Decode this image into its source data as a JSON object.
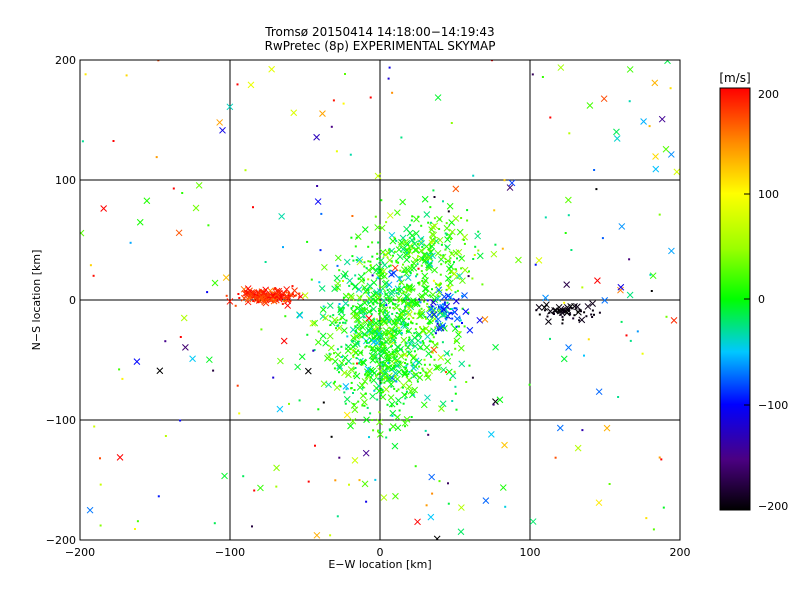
{
  "chart_data": {
    "type": "scatter",
    "title": "Tromsø 20150414 14:18:00−14:19:43",
    "subtitle": "RwPretec (8p) EXPERIMENTAL SKYMAP",
    "xlabel": "E−W location [km]",
    "ylabel": "N−S location [km]",
    "xlim": [
      -200,
      200
    ],
    "ylim": [
      -200,
      200
    ],
    "xticks": [
      "−200",
      "−100",
      "0",
      "100",
      "200"
    ],
    "yticks": [
      "−200",
      "−100",
      "0",
      "100",
      "200"
    ],
    "grid": true,
    "marker_types": [
      "dot",
      "cross"
    ],
    "colorbar": {
      "label": "[m/s]",
      "range": [
        -200,
        200
      ],
      "ticks": [
        "200",
        "100",
        "0",
        "−100",
        "−200"
      ],
      "colormap": "rainbow (black → purple → blue → cyan → green → yellow → orange → red)"
    },
    "clusters": [
      {
        "region": "central",
        "center": [
          5,
          -30
        ],
        "spread": [
          35,
          55
        ],
        "count": 900,
        "velocity_mean": 5,
        "velocity_sd": 25
      },
      {
        "region": "north-center",
        "center": [
          30,
          40
        ],
        "spread": [
          30,
          30
        ],
        "count": 220,
        "velocity_mean": 10,
        "velocity_sd": 25
      },
      {
        "region": "west-red",
        "center": [
          -75,
          3
        ],
        "spread": [
          15,
          5
        ],
        "count": 170,
        "velocity_mean": 185,
        "velocity_sd": 15
      },
      {
        "region": "east-blue",
        "center": [
          45,
          -10
        ],
        "spread": [
          12,
          12
        ],
        "count": 60,
        "velocity_mean": -90,
        "velocity_sd": 20
      },
      {
        "region": "east-black",
        "center": [
          125,
          -10
        ],
        "spread": [
          15,
          7
        ],
        "count": 55,
        "velocity_mean": -195,
        "velocity_sd": 5
      },
      {
        "region": "scattered",
        "center": [
          0,
          0
        ],
        "spread": [
          200,
          200
        ],
        "count": 260,
        "velocity_mean": 20,
        "velocity_sd": 120
      }
    ]
  }
}
